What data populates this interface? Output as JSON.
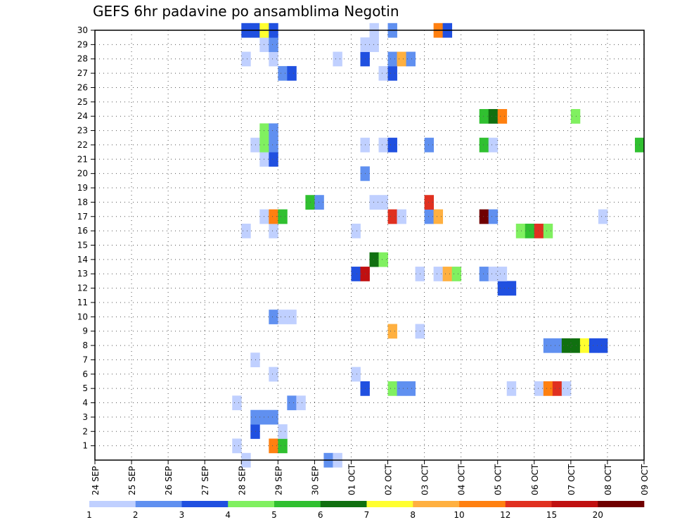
{
  "chart_data": {
    "type": "heatmap",
    "title": "GEFS 6hr padavine po ansamblima Negotin",
    "xlabel": "",
    "ylabel": "",
    "x_tick_labels": [
      "24 SEP",
      "25 SEP",
      "26 SEP",
      "27 SEP",
      "28 SEP",
      "29 SEP",
      "30 SEP",
      "01 OCT",
      "02 OCT",
      "03 OCT",
      "04 OCT",
      "05 OCT",
      "06 OCT",
      "07 OCT",
      "08 OCT",
      "09 OCT"
    ],
    "y_tick_labels": [
      "1",
      "2",
      "3",
      "4",
      "5",
      "6",
      "7",
      "8",
      "9",
      "10",
      "11",
      "12",
      "13",
      "14",
      "15",
      "16",
      "17",
      "18",
      "19",
      "20",
      "21",
      "22",
      "23",
      "24",
      "25",
      "26",
      "27",
      "28",
      "29",
      "30"
    ],
    "x_range": [
      "24 SEP 00Z",
      "09 OCT 00Z"
    ],
    "time_step_hours": 6,
    "y_range": [
      0,
      30
    ],
    "grid": true,
    "colorbar": {
      "orientation": "horizontal",
      "placement": "bottom",
      "labels": [
        "1",
        "2",
        "3",
        "4",
        "5",
        "6",
        "7",
        "8",
        "10",
        "12",
        "15",
        "20"
      ],
      "colors": [
        "#c0d0ff",
        "#6090f0",
        "#2050e0",
        "#80f060",
        "#30c030",
        "#107010",
        "#ffff30",
        "#ffb040",
        "#ff8010",
        "#e03020",
        "#c01010",
        "#700000"
      ]
    },
    "cells": [
      {
        "member": 0,
        "time": "28 SEP 00Z",
        "value": 1.5
      },
      {
        "member": 0,
        "time": "30 SEP 06Z",
        "value": 2.5
      },
      {
        "member": 0,
        "time": "30 SEP 12Z",
        "value": 1.5
      },
      {
        "member": 1,
        "time": "27 SEP 18Z",
        "value": 1.5
      },
      {
        "member": 1,
        "time": "28 SEP 18Z",
        "value": 10
      },
      {
        "member": 1,
        "time": "29 SEP 00Z",
        "value": 5.5
      },
      {
        "member": 2,
        "time": "28 SEP 06Z",
        "value": 3.5
      },
      {
        "member": 2,
        "time": "29 SEP 00Z",
        "value": 1.5
      },
      {
        "member": 3,
        "time": "28 SEP 06Z",
        "value": 2.5
      },
      {
        "member": 3,
        "time": "28 SEP 12Z",
        "value": 2.5
      },
      {
        "member": 3,
        "time": "28 SEP 18Z",
        "value": 2.5
      },
      {
        "member": 4,
        "time": "27 SEP 18Z",
        "value": 1.5
      },
      {
        "member": 4,
        "time": "29 SEP 06Z",
        "value": 2.5
      },
      {
        "member": 4,
        "time": "29 SEP 12Z",
        "value": 1.5
      },
      {
        "member": 5,
        "time": "01 OCT 06Z",
        "value": 3.5
      },
      {
        "member": 5,
        "time": "02 OCT 00Z",
        "value": 4.5
      },
      {
        "member": 5,
        "time": "02 OCT 06Z",
        "value": 2.5
      },
      {
        "member": 5,
        "time": "02 OCT 12Z",
        "value": 2.5
      },
      {
        "member": 5,
        "time": "05 OCT 06Z",
        "value": 1.5
      },
      {
        "member": 5,
        "time": "06 OCT 00Z",
        "value": 1.5
      },
      {
        "member": 5,
        "time": "06 OCT 06Z",
        "value": 11
      },
      {
        "member": 5,
        "time": "06 OCT 12Z",
        "value": 13
      },
      {
        "member": 5,
        "time": "06 OCT 18Z",
        "value": 1.5
      },
      {
        "member": 6,
        "time": "28 SEP 18Z",
        "value": 1.5
      },
      {
        "member": 6,
        "time": "01 OCT 00Z",
        "value": 1.5
      },
      {
        "member": 7,
        "time": "28 SEP 06Z",
        "value": 1.5
      },
      {
        "member": 8,
        "time": "06 OCT 06Z",
        "value": 2.5
      },
      {
        "member": 8,
        "time": "06 OCT 12Z",
        "value": 2.5
      },
      {
        "member": 8,
        "time": "06 OCT 18Z",
        "value": 6.5
      },
      {
        "member": 8,
        "time": "07 OCT 00Z",
        "value": 6.5
      },
      {
        "member": 8,
        "time": "07 OCT 06Z",
        "value": 7.5
      },
      {
        "member": 8,
        "time": "07 OCT 12Z",
        "value": 3.5
      },
      {
        "member": 8,
        "time": "07 OCT 18Z",
        "value": 3.5
      },
      {
        "member": 9,
        "time": "02 OCT 00Z",
        "value": 9
      },
      {
        "member": 9,
        "time": "02 OCT 18Z",
        "value": 1.5
      },
      {
        "member": 10,
        "time": "28 SEP 18Z",
        "value": 2.5
      },
      {
        "member": 10,
        "time": "29 SEP 00Z",
        "value": 1.5
      },
      {
        "member": 10,
        "time": "29 SEP 06Z",
        "value": 1.5
      },
      {
        "member": 12,
        "time": "05 OCT 00Z",
        "value": 3.5
      },
      {
        "member": 12,
        "time": "05 OCT 06Z",
        "value": 3.5
      },
      {
        "member": 13,
        "time": "01 OCT 00Z",
        "value": 3.5
      },
      {
        "member": 13,
        "time": "01 OCT 06Z",
        "value": 17
      },
      {
        "member": 13,
        "time": "02 OCT 18Z",
        "value": 1.5
      },
      {
        "member": 13,
        "time": "03 OCT 06Z",
        "value": 1.5
      },
      {
        "member": 13,
        "time": "03 OCT 12Z",
        "value": 9
      },
      {
        "member": 13,
        "time": "03 OCT 18Z",
        "value": 4.5
      },
      {
        "member": 13,
        "time": "04 OCT 12Z",
        "value": 2.5
      },
      {
        "member": 13,
        "time": "04 OCT 18Z",
        "value": 1.5
      },
      {
        "member": 13,
        "time": "05 OCT 00Z",
        "value": 1.5
      },
      {
        "member": 14,
        "time": "01 OCT 12Z",
        "value": 6.5
      },
      {
        "member": 14,
        "time": "01 OCT 18Z",
        "value": 4.5
      },
      {
        "member": 16,
        "time": "28 SEP 00Z",
        "value": 1.5
      },
      {
        "member": 16,
        "time": "28 SEP 18Z",
        "value": 1.5
      },
      {
        "member": 16,
        "time": "01 OCT 00Z",
        "value": 1.5
      },
      {
        "member": 16,
        "time": "05 OCT 12Z",
        "value": 4.5
      },
      {
        "member": 16,
        "time": "05 OCT 18Z",
        "value": 5.5
      },
      {
        "member": 16,
        "time": "06 OCT 00Z",
        "value": 13
      },
      {
        "member": 16,
        "time": "06 OCT 06Z",
        "value": 4.5
      },
      {
        "member": 17,
        "time": "28 SEP 12Z",
        "value": 1.5
      },
      {
        "member": 17,
        "time": "28 SEP 18Z",
        "value": 11
      },
      {
        "member": 17,
        "time": "29 SEP 00Z",
        "value": 5.5
      },
      {
        "member": 17,
        "time": "02 OCT 00Z",
        "value": 13
      },
      {
        "member": 17,
        "time": "02 OCT 06Z",
        "value": 1.5
      },
      {
        "member": 17,
        "time": "03 OCT 00Z",
        "value": 2.5
      },
      {
        "member": 17,
        "time": "03 OCT 06Z",
        "value": 9
      },
      {
        "member": 17,
        "time": "04 OCT 12Z",
        "value": 25
      },
      {
        "member": 17,
        "time": "04 OCT 18Z",
        "value": 2.5
      },
      {
        "member": 17,
        "time": "07 OCT 18Z",
        "value": 1.5
      },
      {
        "member": 18,
        "time": "29 SEP 18Z",
        "value": 5.5
      },
      {
        "member": 18,
        "time": "30 SEP 00Z",
        "value": 2.5
      },
      {
        "member": 18,
        "time": "01 OCT 12Z",
        "value": 1.5
      },
      {
        "member": 18,
        "time": "01 OCT 18Z",
        "value": 1.5
      },
      {
        "member": 18,
        "time": "03 OCT 00Z",
        "value": 13
      },
      {
        "member": 20,
        "time": "01 OCT 06Z",
        "value": 2.5
      },
      {
        "member": 21,
        "time": "28 SEP 12Z",
        "value": 1.5
      },
      {
        "member": 21,
        "time": "28 SEP 18Z",
        "value": 3.5
      },
      {
        "member": 22,
        "time": "28 SEP 06Z",
        "value": 1.5
      },
      {
        "member": 22,
        "time": "28 SEP 12Z",
        "value": 4.5
      },
      {
        "member": 22,
        "time": "28 SEP 18Z",
        "value": 2.5
      },
      {
        "member": 22,
        "time": "01 OCT 06Z",
        "value": 1.5
      },
      {
        "member": 22,
        "time": "01 OCT 18Z",
        "value": 1.5
      },
      {
        "member": 22,
        "time": "02 OCT 00Z",
        "value": 3.5
      },
      {
        "member": 22,
        "time": "03 OCT 00Z",
        "value": 2.5
      },
      {
        "member": 22,
        "time": "04 OCT 12Z",
        "value": 5.5
      },
      {
        "member": 22,
        "time": "04 OCT 18Z",
        "value": 1.5
      },
      {
        "member": 22,
        "time": "08 OCT 18Z",
        "value": 5.5
      },
      {
        "member": 23,
        "time": "28 SEP 12Z",
        "value": 4.5
      },
      {
        "member": 23,
        "time": "28 SEP 18Z",
        "value": 2.5
      },
      {
        "member": 24,
        "time": "04 OCT 12Z",
        "value": 5.5
      },
      {
        "member": 24,
        "time": "04 OCT 18Z",
        "value": 6.5
      },
      {
        "member": 24,
        "time": "05 OCT 00Z",
        "value": 11
      },
      {
        "member": 24,
        "time": "07 OCT 00Z",
        "value": 4.5
      },
      {
        "member": 27,
        "time": "29 SEP 00Z",
        "value": 2.5
      },
      {
        "member": 27,
        "time": "29 SEP 06Z",
        "value": 3.5
      },
      {
        "member": 27,
        "time": "01 OCT 18Z",
        "value": 1.5
      },
      {
        "member": 27,
        "time": "02 OCT 00Z",
        "value": 3.5
      },
      {
        "member": 28,
        "time": "28 SEP 00Z",
        "value": 1.5
      },
      {
        "member": 28,
        "time": "28 SEP 18Z",
        "value": 1.5
      },
      {
        "member": 28,
        "time": "30 SEP 12Z",
        "value": 1.5
      },
      {
        "member": 28,
        "time": "01 OCT 06Z",
        "value": 3.5
      },
      {
        "member": 28,
        "time": "02 OCT 00Z",
        "value": 2.5
      },
      {
        "member": 28,
        "time": "02 OCT 06Z",
        "value": 9
      },
      {
        "member": 28,
        "time": "02 OCT 12Z",
        "value": 2.5
      },
      {
        "member": 29,
        "time": "28 SEP 12Z",
        "value": 1.5
      },
      {
        "member": 29,
        "time": "28 SEP 18Z",
        "value": 2.5
      },
      {
        "member": 29,
        "time": "01 OCT 06Z",
        "value": 1.5
      },
      {
        "member": 29,
        "time": "01 OCT 12Z",
        "value": 1.5
      },
      {
        "member": 30,
        "time": "28 SEP 00Z",
        "value": 3.5
      },
      {
        "member": 30,
        "time": "28 SEP 06Z",
        "value": 3.5
      },
      {
        "member": 30,
        "time": "28 SEP 12Z",
        "value": 7.5
      },
      {
        "member": 30,
        "time": "28 SEP 18Z",
        "value": 3.5
      },
      {
        "member": 30,
        "time": "01 OCT 12Z",
        "value": 1.5
      },
      {
        "member": 30,
        "time": "02 OCT 00Z",
        "value": 2.5
      },
      {
        "member": 30,
        "time": "03 OCT 06Z",
        "value": 11
      },
      {
        "member": 30,
        "time": "03 OCT 12Z",
        "value": 3.5
      }
    ]
  }
}
